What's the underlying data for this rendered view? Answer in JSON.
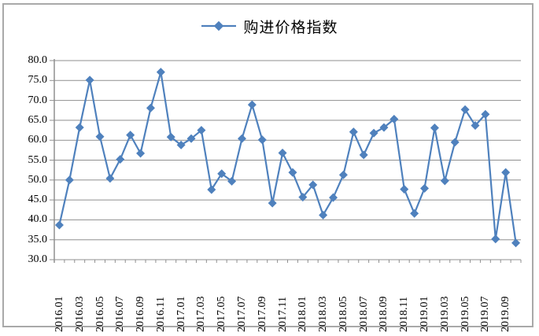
{
  "window": {
    "background": "#ffffff",
    "frame_border_color": "#a9a9a9"
  },
  "legend": {
    "label": "购进价格指数",
    "marker": "diamond",
    "color": "#4F81BD"
  },
  "chart_data": {
    "type": "line",
    "title": "",
    "xlabel": "",
    "ylabel": "",
    "ylim": [
      30,
      80
    ],
    "y_tick_step": 5,
    "y_tick_labels": [
      "80.0",
      "75.0",
      "70.0",
      "65.0",
      "60.0",
      "55.0",
      "50.0",
      "45.0",
      "40.0",
      "35.0",
      "30.0"
    ],
    "grid": "horizontal",
    "gridline_color": "#8f8f8f",
    "legend_position": "top-center",
    "line_color": "#4F81BD",
    "marker": "diamond",
    "x": [
      "2016.01",
      "2016.02",
      "2016.03",
      "2016.04",
      "2016.05",
      "2016.06",
      "2016.07",
      "2016.08",
      "2016.09",
      "2016.10",
      "2016.11",
      "2016.12",
      "2017.01",
      "2017.02",
      "2017.03",
      "2017.04",
      "2017.05",
      "2017.06",
      "2017.07",
      "2017.08",
      "2017.09",
      "2017.10",
      "2017.11",
      "2017.12",
      "2018.01",
      "2018.02",
      "2018.03",
      "2018.04",
      "2018.05",
      "2018.06",
      "2018.07",
      "2018.08",
      "2018.09",
      "2018.10",
      "2018.11",
      "2018.12",
      "2019.01",
      "2019.02",
      "2019.03",
      "2019.04",
      "2019.05",
      "2019.06",
      "2019.07",
      "2019.08",
      "2019.09",
      "2019.10"
    ],
    "x_tick_labels": [
      "2016.01",
      "2016.03",
      "2016.05",
      "2016.07",
      "2016.09",
      "2016.11",
      "2017.01",
      "2017.03",
      "2017.05",
      "2017.07",
      "2017.09",
      "2017.11",
      "2018.01",
      "2018.03",
      "2018.05",
      "2018.07",
      "2018.09",
      "2018.11",
      "2019.01",
      "2019.03",
      "2019.05",
      "2019.07",
      "2019.09"
    ],
    "series": [
      {
        "name": "购进价格指数",
        "values": [
          38.7,
          50.0,
          63.2,
          75.1,
          60.9,
          50.4,
          55.2,
          61.3,
          56.7,
          68.1,
          77.1,
          60.8,
          58.8,
          60.4,
          62.5,
          47.6,
          51.6,
          49.7,
          60.4,
          68.9,
          60.1,
          44.2,
          56.8,
          51.9,
          45.7,
          48.8,
          41.2,
          45.6,
          51.3,
          62.1,
          56.3,
          61.8,
          63.2,
          65.3,
          47.7,
          41.6,
          47.9,
          63.1,
          49.8,
          59.5,
          67.7,
          63.7,
          66.5,
          35.2,
          51.9,
          34.2
        ]
      }
    ]
  }
}
